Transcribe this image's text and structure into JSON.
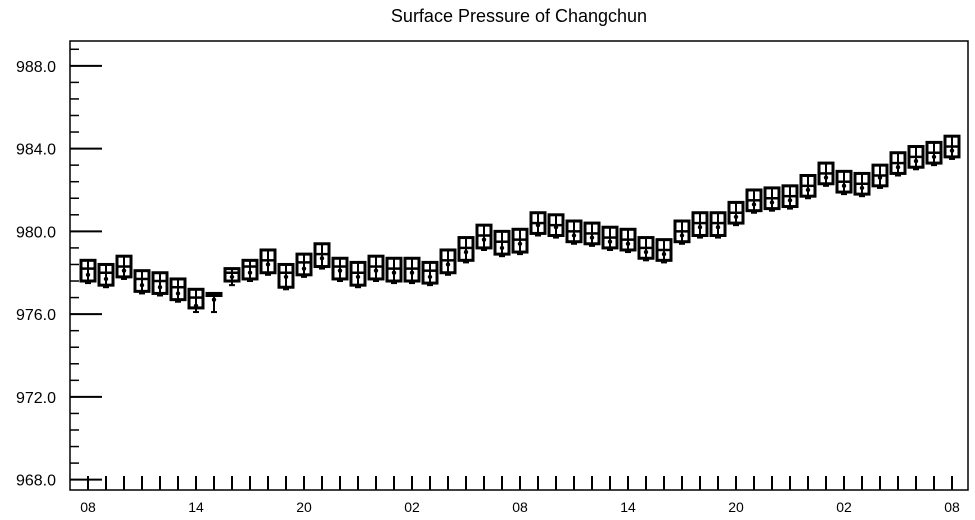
{
  "chart_data": {
    "type": "boxplot",
    "title": "Surface Pressure of Changchun",
    "xlabel": "",
    "ylabel": "",
    "ylim": [
      967.5,
      989.2
    ],
    "yticks": [
      968.0,
      972.0,
      976.0,
      980.0,
      984.0,
      988.0
    ],
    "ytick_labels": [
      "968.0",
      "972.0",
      "976.0",
      "980.0",
      "984.0",
      "988.0"
    ],
    "minor_ytick_step": 0.8,
    "x_start": 0,
    "x_end": 48,
    "xtick_labels": [
      {
        "x": 0,
        "label": "08"
      },
      {
        "x": 6,
        "label": "14"
      },
      {
        "x": 12,
        "label": "20"
      },
      {
        "x": 18,
        "label": "02"
      },
      {
        "x": 24,
        "label": "08"
      },
      {
        "x": 30,
        "label": "14"
      },
      {
        "x": 36,
        "label": "20"
      },
      {
        "x": 42,
        "label": "02"
      },
      {
        "x": 48,
        "label": "08"
      }
    ],
    "boxes": [
      {
        "x": 0,
        "q1": 977.6,
        "median": 978.2,
        "q3": 978.6,
        "whisker_low": 977.5,
        "whisker_high": 978.6,
        "mean": 977.9
      },
      {
        "x": 1,
        "q1": 977.4,
        "median": 978.0,
        "q3": 978.4,
        "whisker_low": 977.3,
        "whisker_high": 978.4,
        "mean": 977.7
      },
      {
        "x": 2,
        "q1": 977.8,
        "median": 978.3,
        "q3": 978.8,
        "whisker_low": 977.7,
        "whisker_high": 978.8,
        "mean": 978.1
      },
      {
        "x": 3,
        "q1": 977.1,
        "median": 977.7,
        "q3": 978.1,
        "whisker_low": 977.0,
        "whisker_high": 978.1,
        "mean": 977.4
      },
      {
        "x": 4,
        "q1": 977.0,
        "median": 977.6,
        "q3": 978.0,
        "whisker_low": 976.9,
        "whisker_high": 978.0,
        "mean": 977.3
      },
      {
        "x": 5,
        "q1": 976.7,
        "median": 977.3,
        "q3": 977.7,
        "whisker_low": 976.6,
        "whisker_high": 977.7,
        "mean": 977.0
      },
      {
        "x": 6,
        "q1": 976.3,
        "median": 976.8,
        "q3": 977.2,
        "whisker_low": 976.1,
        "whisker_high": 977.2,
        "mean": 976.4
      },
      {
        "x": 7,
        "q1": 976.9,
        "median": 976.95,
        "q3": 977.0,
        "whisker_low": 976.1,
        "whisker_high": 977.0,
        "mean": 976.7
      },
      {
        "x": 8,
        "q1": 977.6,
        "median": 978.0,
        "q3": 978.2,
        "whisker_low": 977.4,
        "whisker_high": 978.2,
        "mean": 977.8
      },
      {
        "x": 9,
        "q1": 977.7,
        "median": 978.3,
        "q3": 978.6,
        "whisker_low": 977.6,
        "whisker_high": 978.6,
        "mean": 978.0
      },
      {
        "x": 10,
        "q1": 978.0,
        "median": 978.6,
        "q3": 979.1,
        "whisker_low": 977.9,
        "whisker_high": 979.1,
        "mean": 978.4
      },
      {
        "x": 11,
        "q1": 977.3,
        "median": 978.0,
        "q3": 978.4,
        "whisker_low": 977.2,
        "whisker_high": 978.4,
        "mean": 977.8
      },
      {
        "x": 12,
        "q1": 977.9,
        "median": 978.5,
        "q3": 978.9,
        "whisker_low": 977.8,
        "whisker_high": 978.9,
        "mean": 978.2
      },
      {
        "x": 13,
        "q1": 978.3,
        "median": 978.9,
        "q3": 979.4,
        "whisker_low": 978.2,
        "whisker_high": 979.4,
        "mean": 978.7
      },
      {
        "x": 14,
        "q1": 977.7,
        "median": 978.3,
        "q3": 978.7,
        "whisker_low": 977.6,
        "whisker_high": 978.7,
        "mean": 978.1
      },
      {
        "x": 15,
        "q1": 977.4,
        "median": 978.0,
        "q3": 978.5,
        "whisker_low": 977.3,
        "whisker_high": 978.5,
        "mean": 977.8
      },
      {
        "x": 16,
        "q1": 977.7,
        "median": 978.3,
        "q3": 978.8,
        "whisker_low": 977.6,
        "whisker_high": 978.8,
        "mean": 978.1
      },
      {
        "x": 17,
        "q1": 977.6,
        "median": 978.2,
        "q3": 978.7,
        "whisker_low": 977.5,
        "whisker_high": 978.7,
        "mean": 978.0
      },
      {
        "x": 18,
        "q1": 977.6,
        "median": 978.2,
        "q3": 978.7,
        "whisker_low": 977.5,
        "whisker_high": 978.7,
        "mean": 978.0
      },
      {
        "x": 19,
        "q1": 977.5,
        "median": 978.1,
        "q3": 978.5,
        "whisker_low": 977.4,
        "whisker_high": 978.5,
        "mean": 977.8
      },
      {
        "x": 20,
        "q1": 978.0,
        "median": 978.6,
        "q3": 979.1,
        "whisker_low": 977.9,
        "whisker_high": 979.1,
        "mean": 978.4
      },
      {
        "x": 21,
        "q1": 978.6,
        "median": 979.2,
        "q3": 979.7,
        "whisker_low": 978.5,
        "whisker_high": 979.7,
        "mean": 979.0
      },
      {
        "x": 22,
        "q1": 979.2,
        "median": 979.8,
        "q3": 980.3,
        "whisker_low": 979.1,
        "whisker_high": 980.3,
        "mean": 979.6
      },
      {
        "x": 23,
        "q1": 978.9,
        "median": 979.5,
        "q3": 980.0,
        "whisker_low": 978.8,
        "whisker_high": 980.0,
        "mean": 979.2
      },
      {
        "x": 24,
        "q1": 979.0,
        "median": 979.6,
        "q3": 980.1,
        "whisker_low": 978.9,
        "whisker_high": 980.1,
        "mean": 979.4
      },
      {
        "x": 25,
        "q1": 979.9,
        "median": 980.4,
        "q3": 980.9,
        "whisker_low": 979.8,
        "whisker_high": 980.9,
        "mean": 980.3
      },
      {
        "x": 26,
        "q1": 979.8,
        "median": 980.3,
        "q3": 980.8,
        "whisker_low": 979.7,
        "whisker_high": 980.8,
        "mean": 980.2
      },
      {
        "x": 27,
        "q1": 979.5,
        "median": 980.0,
        "q3": 980.5,
        "whisker_low": 979.4,
        "whisker_high": 980.5,
        "mean": 979.8
      },
      {
        "x": 28,
        "q1": 979.4,
        "median": 979.9,
        "q3": 980.4,
        "whisker_low": 979.3,
        "whisker_high": 980.4,
        "mean": 979.7
      },
      {
        "x": 29,
        "q1": 979.2,
        "median": 979.7,
        "q3": 980.2,
        "whisker_low": 979.1,
        "whisker_high": 980.2,
        "mean": 979.5
      },
      {
        "x": 30,
        "q1": 979.1,
        "median": 979.6,
        "q3": 980.1,
        "whisker_low": 979.0,
        "whisker_high": 980.1,
        "mean": 979.4
      },
      {
        "x": 31,
        "q1": 978.7,
        "median": 979.2,
        "q3": 979.7,
        "whisker_low": 978.6,
        "whisker_high": 979.7,
        "mean": 979.0
      },
      {
        "x": 32,
        "q1": 978.6,
        "median": 979.1,
        "q3": 979.6,
        "whisker_low": 978.5,
        "whisker_high": 979.6,
        "mean": 978.9
      },
      {
        "x": 33,
        "q1": 979.5,
        "median": 980.0,
        "q3": 980.5,
        "whisker_low": 979.4,
        "whisker_high": 980.5,
        "mean": 979.8
      },
      {
        "x": 34,
        "q1": 979.8,
        "median": 980.4,
        "q3": 980.9,
        "whisker_low": 979.7,
        "whisker_high": 980.9,
        "mean": 980.2
      },
      {
        "x": 35,
        "q1": 979.8,
        "median": 980.4,
        "q3": 980.9,
        "whisker_low": 979.7,
        "whisker_high": 980.9,
        "mean": 980.2
      },
      {
        "x": 36,
        "q1": 980.4,
        "median": 980.9,
        "q3": 981.4,
        "whisker_low": 980.3,
        "whisker_high": 981.4,
        "mean": 980.7
      },
      {
        "x": 37,
        "q1": 981.0,
        "median": 981.5,
        "q3": 982.0,
        "whisker_low": 980.9,
        "whisker_high": 982.0,
        "mean": 981.3
      },
      {
        "x": 38,
        "q1": 981.1,
        "median": 981.6,
        "q3": 982.1,
        "whisker_low": 981.0,
        "whisker_high": 982.1,
        "mean": 981.4
      },
      {
        "x": 39,
        "q1": 981.2,
        "median": 981.7,
        "q3": 982.2,
        "whisker_low": 981.1,
        "whisker_high": 982.2,
        "mean": 981.5
      },
      {
        "x": 40,
        "q1": 981.7,
        "median": 982.2,
        "q3": 982.7,
        "whisker_low": 981.6,
        "whisker_high": 982.7,
        "mean": 982.0
      },
      {
        "x": 41,
        "q1": 982.3,
        "median": 982.8,
        "q3": 983.3,
        "whisker_low": 982.2,
        "whisker_high": 983.3,
        "mean": 982.6
      },
      {
        "x": 42,
        "q1": 981.9,
        "median": 982.4,
        "q3": 982.9,
        "whisker_low": 981.8,
        "whisker_high": 982.9,
        "mean": 982.2
      },
      {
        "x": 43,
        "q1": 981.8,
        "median": 982.3,
        "q3": 982.8,
        "whisker_low": 981.7,
        "whisker_high": 982.8,
        "mean": 982.1
      },
      {
        "x": 44,
        "q1": 982.2,
        "median": 982.7,
        "q3": 983.2,
        "whisker_low": 982.1,
        "whisker_high": 983.2,
        "mean": 982.6
      },
      {
        "x": 45,
        "q1": 982.8,
        "median": 983.3,
        "q3": 983.8,
        "whisker_low": 982.7,
        "whisker_high": 983.8,
        "mean": 983.1
      },
      {
        "x": 46,
        "q1": 983.1,
        "median": 983.6,
        "q3": 984.1,
        "whisker_low": 983.0,
        "whisker_high": 984.1,
        "mean": 983.4
      },
      {
        "x": 47,
        "q1": 983.3,
        "median": 983.8,
        "q3": 984.3,
        "whisker_low": 983.2,
        "whisker_high": 984.3,
        "mean": 983.6
      },
      {
        "x": 48,
        "q1": 983.6,
        "median": 984.1,
        "q3": 984.6,
        "whisker_low": 983.5,
        "whisker_high": 984.6,
        "mean": 983.9
      }
    ],
    "grid": false,
    "colors": {
      "line": "#000000",
      "background": "#ffffff"
    }
  }
}
